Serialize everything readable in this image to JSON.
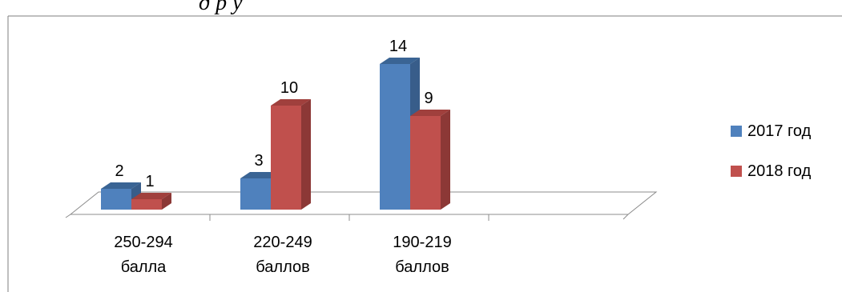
{
  "header_fragment": "д         р  у",
  "chart_data": {
    "type": "bar",
    "categories": [
      [
        "250-294",
        "балла"
      ],
      [
        "220-249",
        "баллов"
      ],
      [
        "190-219",
        "баллов"
      ],
      [
        "",
        ""
      ]
    ],
    "series": [
      {
        "name": "2017 год",
        "values": [
          2,
          3,
          14,
          null
        ],
        "color": "#4f81bd",
        "side_color": "#385d8a",
        "top_color": "#3a6494"
      },
      {
        "name": "2018 год",
        "values": [
          1,
          10,
          9,
          null
        ],
        "color": "#c0504d",
        "side_color": "#8c3836",
        "top_color": "#a0403d"
      }
    ],
    "ylim": [
      0,
      14
    ],
    "grid": false,
    "legend_position": "right",
    "three_d": true
  }
}
